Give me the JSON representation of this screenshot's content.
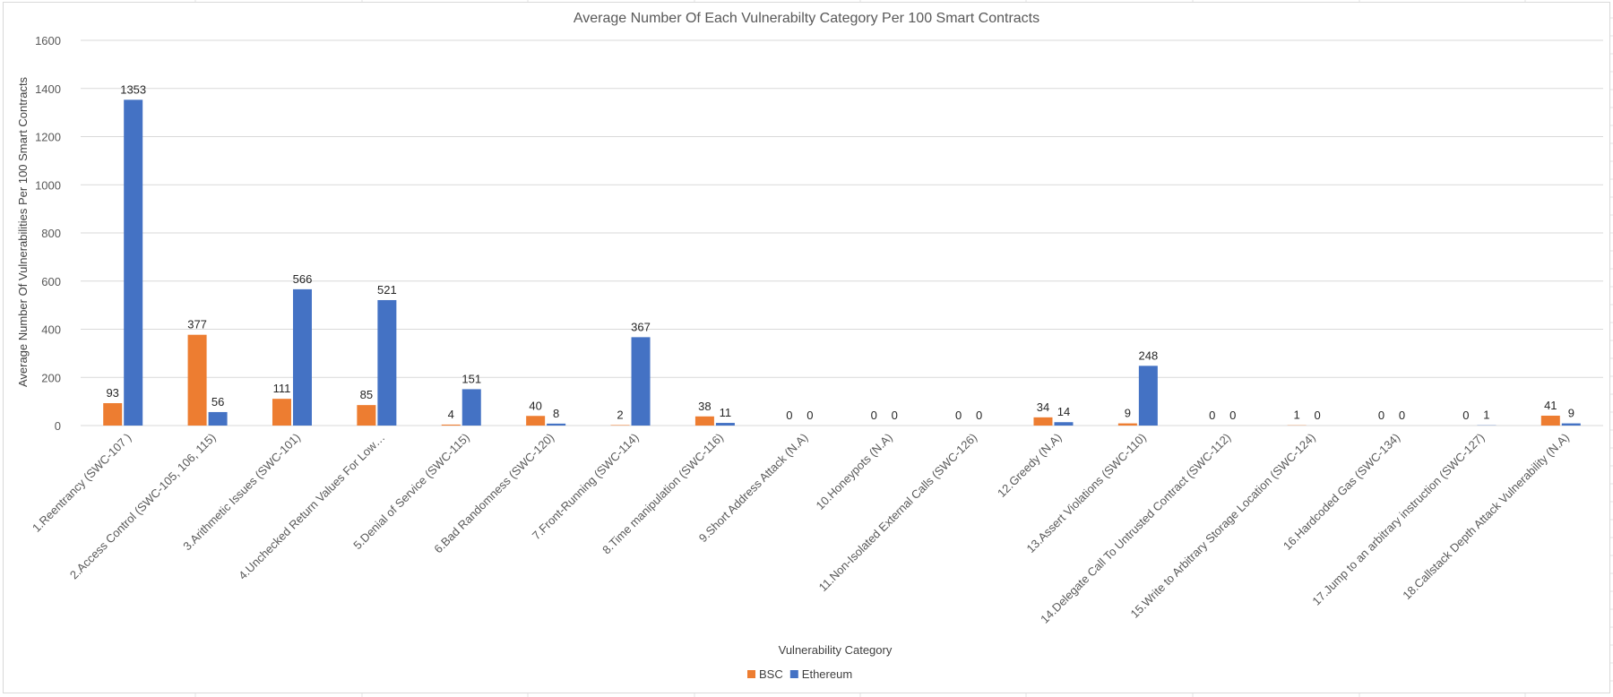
{
  "chart_data": {
    "type": "bar",
    "title": "Average Number Of Each Vulnerabilty Category Per 100 Smart Contracts",
    "xlabel": "Vulnerability Category",
    "ylabel": "Average Number Of Vulnerabilities Per 100 Smart Contracts",
    "ylim": [
      0,
      1600
    ],
    "yticks": [
      "0",
      "200",
      "400",
      "600",
      "800",
      "1000",
      "1200",
      "1400",
      "1600"
    ],
    "grid": true,
    "legend_position": "bottom",
    "categories": [
      "1.Reentrancy (SWC-107 )",
      "2.Access Control (SWC-105, 106, 115)",
      "3.Arithmetic Issues (SWC-101)",
      "4.Unchecked Return Values For Low…",
      "5.Denial of Service (SWC-115)",
      "6.Bad Randomness (SWC-120)",
      "7.Front-Running (SWC-114)",
      "8.Time manipulation (SWC-116)",
      "9.Short Address Attack (N.A)",
      "10.Honeypots (N.A)",
      "11.Non-Isolated External Calls (SWC-126)",
      "12.Greedy (N.A)",
      "13.Assert Violations  (SWC-110)",
      "14.Delegate Call To Untrusted Contract (SWC-112)",
      "15.Write to Arbitrary Storage Location  (SWC-124)",
      "16.Hardcoded Gas (SWC-134)",
      "17.Jump to an arbitrary instruction (SWC-127)",
      "18.Callstack Depth Attack Vulnerability (N.A)"
    ],
    "series": [
      {
        "name": "BSC",
        "color": "#ed7d31",
        "values": [
          93,
          377,
          111,
          85,
          4,
          40,
          2,
          38,
          0,
          0,
          0,
          34,
          9,
          0,
          1,
          0,
          0,
          41
        ]
      },
      {
        "name": "Ethereum",
        "color": "#4472c4",
        "values": [
          1353,
          56,
          566,
          521,
          151,
          8,
          367,
          11,
          0,
          0,
          0,
          14,
          248,
          0,
          0,
          0,
          1,
          9
        ]
      }
    ]
  }
}
